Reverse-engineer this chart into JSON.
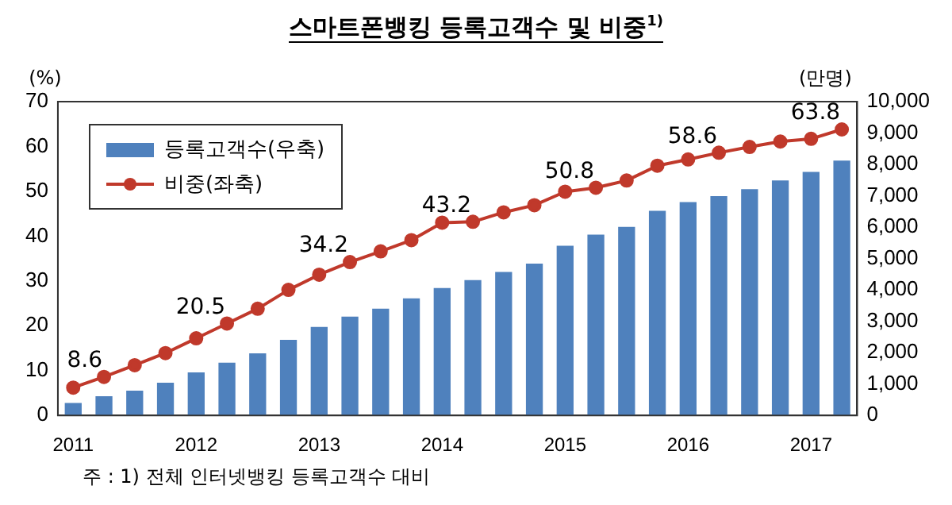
{
  "chart_data": {
    "type": "bar",
    "title": "스마트폰뱅킹 등록고객수 및 비중$^{1)}$",
    "ylabel": "(%)",
    "y2label": "(만명)",
    "annotations": [
      "주 : 1) 전체 인터넷뱅킹 등록고객수 대비"
    ],
    "categories": [
      "2011",
      null,
      null,
      null,
      "2012",
      null,
      null,
      null,
      "2013",
      null,
      null,
      null,
      "2014",
      null,
      null,
      null,
      "2015",
      null,
      null,
      null,
      "2016",
      null,
      null,
      null,
      "2017",
      null
    ],
    "series": [
      {
        "name": "등록고객수(우축)",
        "axis": "y2",
        "color": "#4f81bd",
        "values": [
          400,
          610,
          790,
          1040,
          1370,
          1680,
          1980,
          2410,
          2820,
          3150,
          3400,
          3730,
          4060,
          4310,
          4570,
          4840,
          5410,
          5760,
          6010,
          6520,
          6800,
          6990,
          7210,
          7490,
          7760,
          8120
        ]
      },
      {
        "name": "비중(좌축)",
        "type": "line",
        "axis": "y",
        "color": "#c0392b",
        "marker": "circle",
        "values": [
          6.2,
          8.6,
          11.2,
          13.9,
          17.2,
          20.5,
          23.8,
          28.0,
          31.4,
          34.2,
          36.6,
          39.1,
          43.0,
          43.2,
          45.3,
          46.9,
          49.9,
          50.8,
          52.4,
          55.7,
          57.1,
          58.6,
          59.9,
          61.1,
          61.7,
          63.8
        ],
        "value_labels": [
          null,
          "8.6",
          null,
          null,
          null,
          "20.5",
          null,
          null,
          null,
          "34.2",
          null,
          null,
          null,
          "43.2",
          null,
          null,
          null,
          "50.8",
          null,
          null,
          null,
          "58.6",
          null,
          null,
          null,
          "63.8"
        ]
      }
    ],
    "ylim": [
      0,
      70
    ],
    "yticks": [
      0,
      10,
      20,
      30,
      40,
      50,
      60,
      70
    ],
    "y2lim": [
      0,
      10000
    ],
    "y2ticks": [
      {
        "value": 0,
        "label": "0"
      },
      {
        "value": 1000,
        "label": "1,000"
      },
      {
        "value": 2000,
        "label": "2,000"
      },
      {
        "value": 3000,
        "label": "3,000"
      },
      {
        "value": 4000,
        "label": "4,000"
      },
      {
        "value": 5000,
        "label": "5,000"
      },
      {
        "value": 6000,
        "label": "6,000"
      },
      {
        "value": 7000,
        "label": "7,000"
      },
      {
        "value": 8000,
        "label": "8,000"
      },
      {
        "value": 9000,
        "label": "9,000"
      },
      {
        "value": 10000,
        "label": "10,000"
      }
    ],
    "grid": false,
    "legend": "top left"
  }
}
